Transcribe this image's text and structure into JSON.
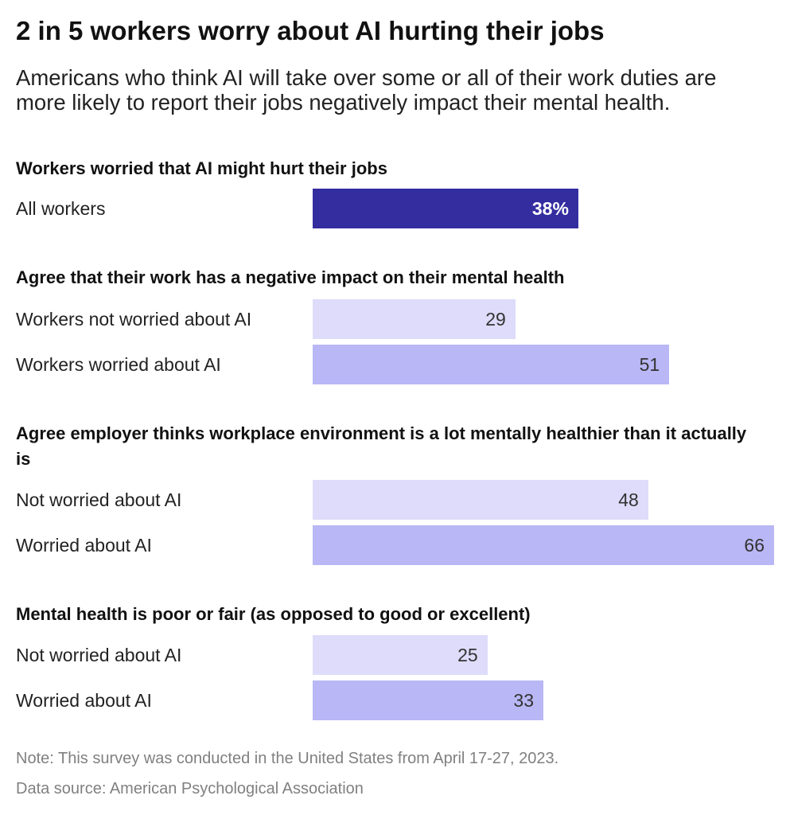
{
  "title": "2 in 5 workers worry about AI hurting their jobs",
  "subtitle": "Americans who think AI will take over some or all of their work duties are more likely to report their jobs negatively impact their mental health.",
  "note": "Note: This survey was conducted in the United States from April 17-27, 2023.",
  "source": "Data source: American Psychological Association",
  "colors": {
    "primary": "#332da0",
    "light": "#dedcfa",
    "medium": "#b9b7f5"
  },
  "chart_data": {
    "type": "bar",
    "orientation": "horizontal",
    "unit": "%",
    "xlim": [
      0,
      66
    ],
    "grid": false,
    "groups": [
      {
        "title": "Workers worried that AI might hurt their jobs",
        "rows": [
          {
            "label": "All workers",
            "value": 38,
            "display": "38%",
            "color": "primary"
          }
        ]
      },
      {
        "title": "Agree that their work has a negative impact on their mental health",
        "rows": [
          {
            "label": "Workers not worried about AI",
            "value": 29,
            "display": "29",
            "color": "light"
          },
          {
            "label": "Workers worried about AI",
            "value": 51,
            "display": "51",
            "color": "medium"
          }
        ]
      },
      {
        "title": "Agree employer thinks workplace environment is a lot mentally healthier than it actually is",
        "rows": [
          {
            "label": "Not worried about AI",
            "value": 48,
            "display": "48",
            "color": "light"
          },
          {
            "label": "Worried about AI",
            "value": 66,
            "display": "66",
            "color": "medium"
          }
        ]
      },
      {
        "title": "Mental health is poor or fair (as opposed to good or excellent)",
        "rows": [
          {
            "label": "Not worried about AI",
            "value": 25,
            "display": "25",
            "color": "light"
          },
          {
            "label": "Worried about AI",
            "value": 33,
            "display": "33",
            "color": "medium"
          }
        ]
      }
    ]
  }
}
